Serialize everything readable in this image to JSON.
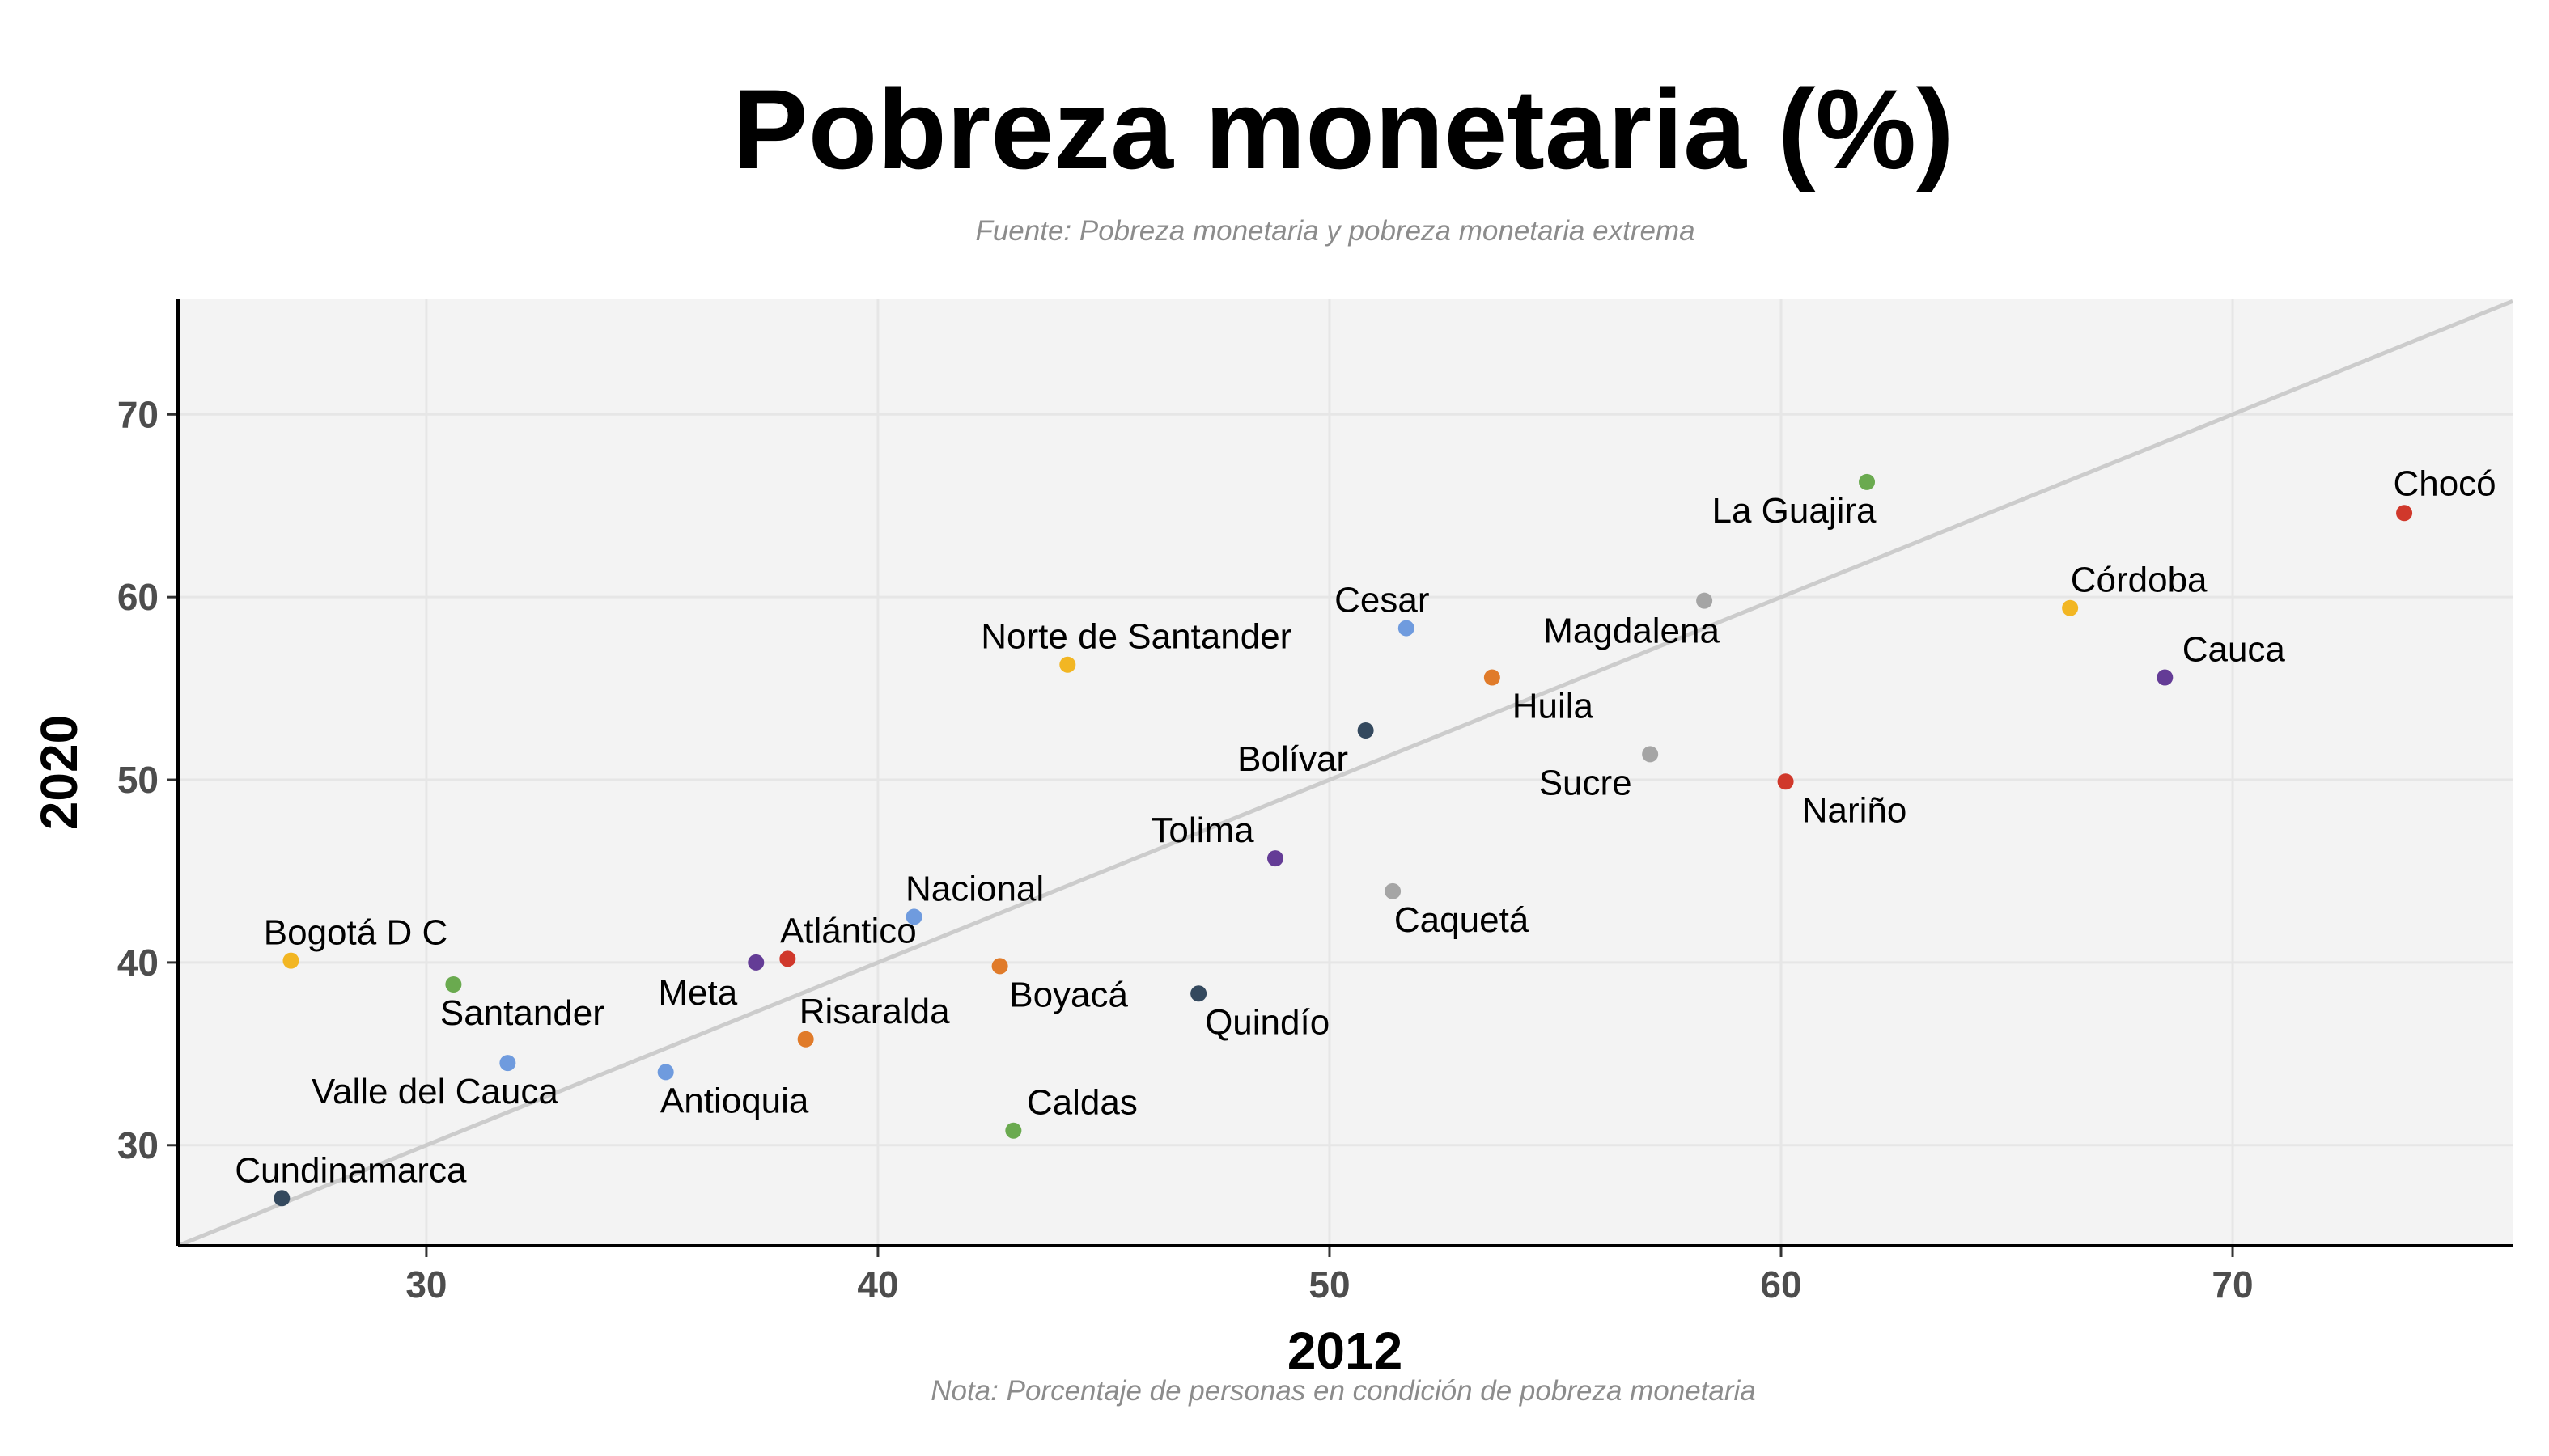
{
  "chart_data": {
    "type": "scatter",
    "title": "Pobreza monetaria (%)",
    "subtitle": "Fuente: Pobreza monetaria y pobreza monetaria extrema",
    "caption": "Nota: Porcentaje de personas en condición de pobreza monetaria",
    "xlabel": "2012",
    "ylabel": "2020",
    "xlim": [
      24.5,
      76.2
    ],
    "ylim": [
      24.5,
      76.3
    ],
    "xticks": [
      30,
      40,
      50,
      60,
      70
    ],
    "yticks": [
      30,
      40,
      50,
      60,
      70
    ],
    "grid": true,
    "reference_line": "y = x",
    "colors": {
      "panel_background": "#f3f3f3",
      "grid": "#e6e6e6",
      "reference_line": "#cccccc",
      "axis": "#000000",
      "tick_label": "#4d4d4d"
    },
    "points": [
      {
        "name": "Chocó",
        "x": 73.8,
        "y": 64.6,
        "color": "#d0382b"
      },
      {
        "name": "La Guajira",
        "x": 61.9,
        "y": 66.3,
        "color": "#6aaa4f"
      },
      {
        "name": "Córdoba",
        "x": 66.4,
        "y": 59.4,
        "color": "#f2b623"
      },
      {
        "name": "Cauca",
        "x": 68.5,
        "y": 55.6,
        "color": "#643c96"
      },
      {
        "name": "Magdalena",
        "x": 58.3,
        "y": 59.8,
        "color": "#a5a5a5"
      },
      {
        "name": "Cesar",
        "x": 51.7,
        "y": 58.3,
        "color": "#6f9bde"
      },
      {
        "name": "Huila",
        "x": 53.6,
        "y": 55.6,
        "color": "#e07b2a"
      },
      {
        "name": "Bolívar",
        "x": 50.8,
        "y": 52.7,
        "color": "#34495e"
      },
      {
        "name": "Sucre",
        "x": 57.1,
        "y": 51.4,
        "color": "#a5a5a5"
      },
      {
        "name": "Nariño",
        "x": 60.1,
        "y": 49.9,
        "color": "#d0382b"
      },
      {
        "name": "Norte de Santander",
        "x": 44.2,
        "y": 56.3,
        "color": "#f2b623"
      },
      {
        "name": "Tolima",
        "x": 48.8,
        "y": 45.7,
        "color": "#643c96"
      },
      {
        "name": "Caquetá",
        "x": 51.4,
        "y": 43.9,
        "color": "#a5a5a5"
      },
      {
        "name": "Nacional",
        "x": 40.8,
        "y": 42.5,
        "color": "#6f9bde"
      },
      {
        "name": "Atlántico",
        "x": 38.0,
        "y": 40.2,
        "color": "#d0382b"
      },
      {
        "name": "Meta",
        "x": 37.3,
        "y": 40.0,
        "color": "#643c96"
      },
      {
        "name": "Boyacá",
        "x": 42.7,
        "y": 39.8,
        "color": "#e07b2a"
      },
      {
        "name": "Quindío",
        "x": 47.1,
        "y": 38.3,
        "color": "#34495e"
      },
      {
        "name": "Bogotá D C",
        "x": 27.0,
        "y": 40.1,
        "color": "#f2b623"
      },
      {
        "name": "Santander",
        "x": 30.6,
        "y": 38.8,
        "color": "#6aaa4f"
      },
      {
        "name": "Risaralda",
        "x": 38.4,
        "y": 35.8,
        "color": "#e07b2a"
      },
      {
        "name": "Valle del Cauca",
        "x": 31.8,
        "y": 34.5,
        "color": "#6f9bde"
      },
      {
        "name": "Antioquia",
        "x": 35.3,
        "y": 34.0,
        "color": "#6f9bde"
      },
      {
        "name": "Caldas",
        "x": 43.0,
        "y": 30.8,
        "color": "#6aaa4f"
      },
      {
        "name": "Cundinamarca",
        "x": 26.8,
        "y": 27.1,
        "color": "#34495e"
      }
    ]
  }
}
